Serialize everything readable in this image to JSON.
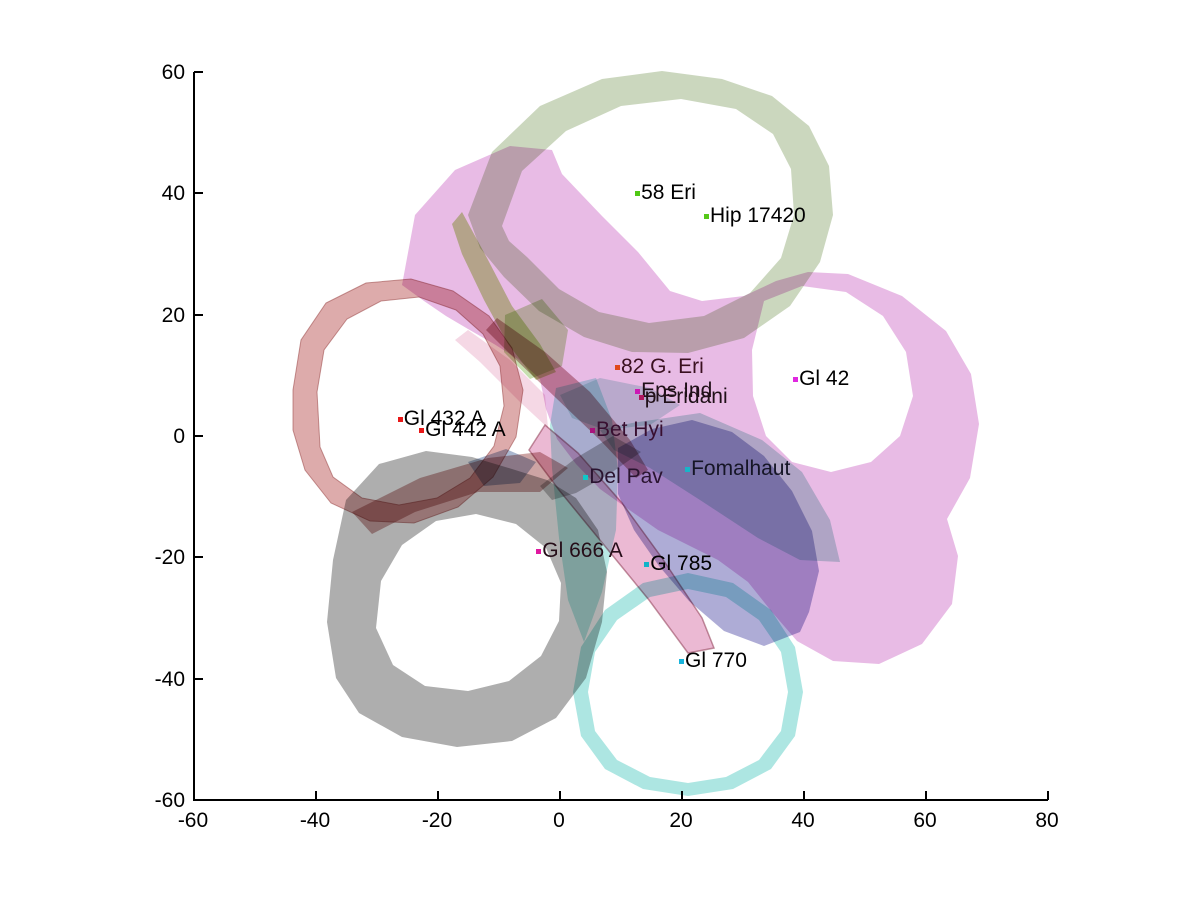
{
  "figure": {
    "background": "#ffffff"
  },
  "chart_data": {
    "type": "scatter",
    "title": "",
    "xlabel": "",
    "ylabel": "",
    "xlim": [
      -60,
      80
    ],
    "ylim": [
      -60,
      60
    ],
    "x_ticks": [
      "-60",
      "-40",
      "-20",
      "0",
      "20",
      "40",
      "60",
      "80"
    ],
    "y_ticks": [
      "-60",
      "-40",
      "-20",
      "0",
      "20",
      "40",
      "60"
    ],
    "grid": false,
    "legend": null,
    "points": [
      {
        "label": "58 Eri",
        "x": 12.8,
        "y": 40.0,
        "marker_color": "#50c814",
        "label_color": "#000000"
      },
      {
        "label": "Hip 17420",
        "x": 24.1,
        "y": 36.3,
        "marker_color": "#55c818",
        "label_color": "#000000"
      },
      {
        "label": "Gl 42",
        "x": 38.7,
        "y": 9.4,
        "marker_color": "#e028e0",
        "label_color": "#000000"
      },
      {
        "label": "82 G. Eri",
        "x": 9.5,
        "y": 11.4,
        "marker_color": "#e0481c",
        "label_color": "#3a1020"
      },
      {
        "label": "Eps Ind",
        "x": 12.8,
        "y": 7.4,
        "marker_color": "#cc18b4",
        "label_color": "#201018"
      },
      {
        "label": "p Eridani",
        "x": 13.4,
        "y": 6.4,
        "marker_color": "#b01860",
        "label_color": "#201018"
      },
      {
        "label": "Bet Hyi",
        "x": 5.4,
        "y": 1.0,
        "marker_color": "#a8147c",
        "label_color": "#380f30"
      },
      {
        "label": "Gl 432 A",
        "x": -26.1,
        "y": 2.8,
        "marker_color": "#e81818",
        "label_color": "#000000"
      },
      {
        "label": "Gl 442 A",
        "x": -22.6,
        "y": 1.0,
        "marker_color": "#e81818",
        "label_color": "#000000"
      },
      {
        "label": "Del Pav",
        "x": 4.3,
        "y": -6.8,
        "marker_color": "#10c8c8",
        "label_color": "#2a1430"
      },
      {
        "label": "Fomalhaut",
        "x": 21.0,
        "y": -5.5,
        "marker_color": "#18b4c8",
        "label_color": "#151525"
      },
      {
        "label": "Gl 666 A",
        "x": -3.4,
        "y": -19.0,
        "marker_color": "#e018a0",
        "label_color": "#250d18"
      },
      {
        "label": "Gl 785",
        "x": 14.3,
        "y": -21.1,
        "marker_color": "#10b4c8",
        "label_color": "#000000"
      },
      {
        "label": "Gl 770",
        "x": 20.0,
        "y": -37.1,
        "marker_color": "#18b4dc",
        "label_color": "#000000"
      }
    ],
    "regions": [
      {
        "name": "magenta-mass",
        "color": "#d583cf"
      },
      {
        "name": "green-ring",
        "color": "#a9bd92"
      },
      {
        "name": "green-bright-edge",
        "color": "#accf6d"
      },
      {
        "name": "green-center-patch",
        "color": "#8fbf62"
      },
      {
        "name": "red-ring",
        "color": "#d28f8f"
      },
      {
        "name": "maroon-streak",
        "color": "#a04a5a"
      },
      {
        "name": "maroon-band",
        "color": "#9c4a4a"
      },
      {
        "name": "gray-ring",
        "color": "#a0a0a0"
      },
      {
        "name": "gray-arm",
        "color": "#a0a0a0"
      },
      {
        "name": "rose-ribbon",
        "color": "#dd8ab5"
      },
      {
        "name": "pink-ribbon",
        "color": "#ecb8d0"
      },
      {
        "name": "cyan-ring",
        "color": "#9fe2dd"
      },
      {
        "name": "cyan-band",
        "color": "#9adfda"
      },
      {
        "name": "teal-mass",
        "color": "#7fbfb7"
      },
      {
        "name": "teal-patch",
        "color": "#8cc8c0"
      },
      {
        "name": "blue-mass",
        "color": "#6b68b5"
      },
      {
        "name": "slate-patch",
        "color": "#55709f"
      }
    ]
  }
}
